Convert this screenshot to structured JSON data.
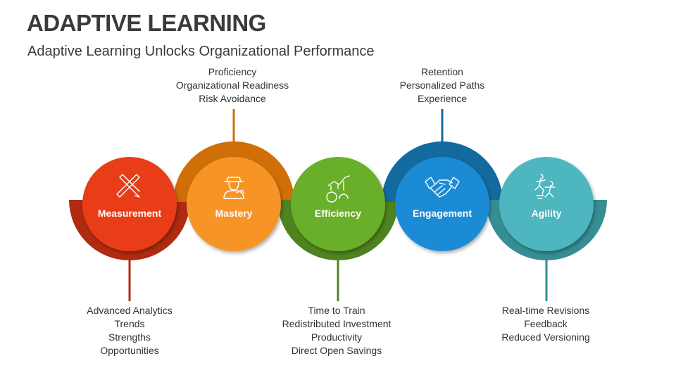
{
  "title": "ADAPTIVE LEARNING",
  "subtitle": "Adaptive Learning Unlocks Organizational Performance",
  "stages": [
    {
      "name": "Measurement",
      "icon": "pencil-ruler-icon",
      "color": "#E83E16",
      "ring_color": "#B02B10",
      "ring": "bottom",
      "items": [
        "Advanced Analytics",
        "Trends",
        "Strengths",
        "Opportunities"
      ]
    },
    {
      "name": "Mastery",
      "icon": "worker-icon",
      "color": "#F79425",
      "ring_color": "#D06F08",
      "ring": "top",
      "items": [
        "Proficiency",
        "Organizational Readiness",
        "Risk Avoidance"
      ]
    },
    {
      "name": "Efficiency",
      "icon": "gears-chart-icon",
      "color": "#6BAF2A",
      "ring_color": "#4F8320",
      "ring": "bottom",
      "items": [
        "Time to Train",
        "Redistributed Investment",
        "Productivity",
        "Direct Open Savings"
      ]
    },
    {
      "name": "Engagement",
      "icon": "handshake-icon",
      "color": "#1A8BD6",
      "ring_color": "#136A9E",
      "ring": "top",
      "items": [
        "Retention",
        "Personalized Paths",
        "Experience"
      ]
    },
    {
      "name": "Agility",
      "icon": "running-people-icon",
      "color": "#4DB6BF",
      "ring_color": "#368E94",
      "ring": "bottom",
      "items": [
        "Real-time Revisions",
        "Feedback",
        "Reduced Versioning"
      ]
    }
  ]
}
